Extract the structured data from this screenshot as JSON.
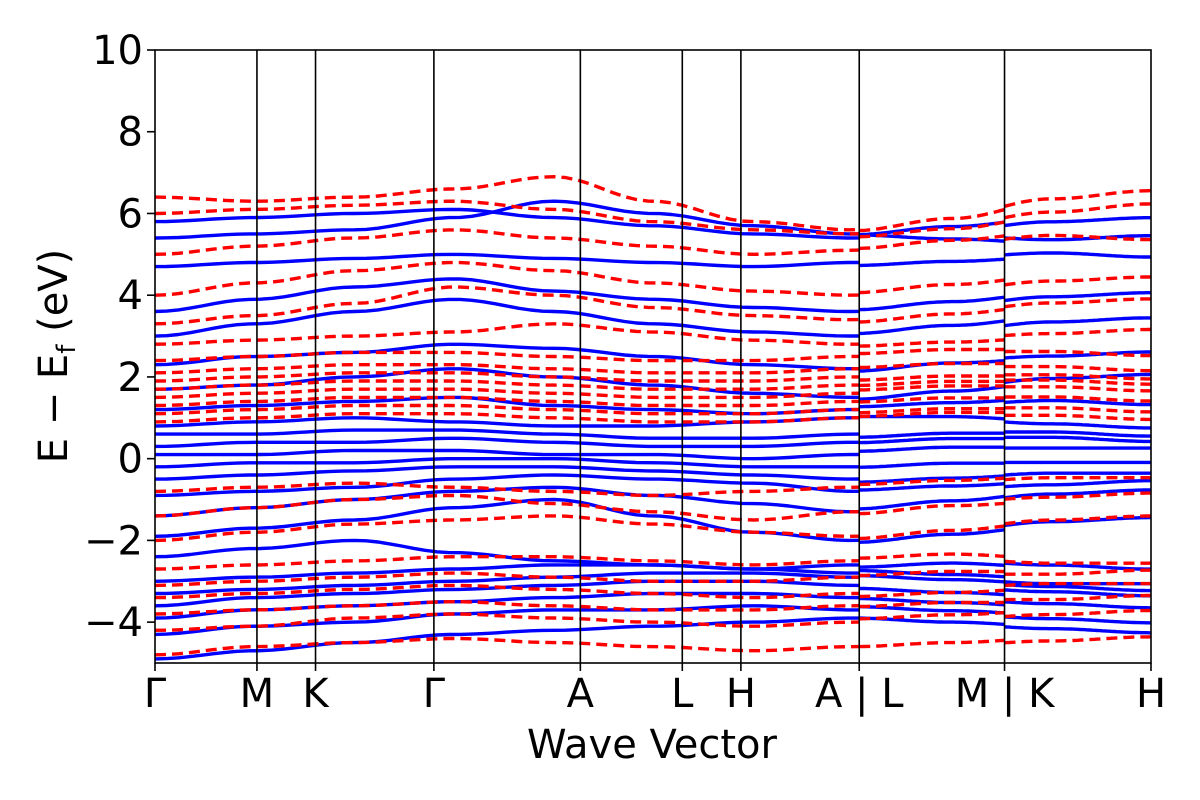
{
  "chart_data": {
    "type": "line",
    "title": "",
    "xlabel": "Wave Vector",
    "ylabel": {
      "prefix": "E − E",
      "subscript": "f",
      "suffix": " (eV)"
    },
    "ylim": [
      -5,
      10
    ],
    "yticks": [
      {
        "value": -4,
        "label": "−4"
      },
      {
        "value": -2,
        "label": "−2"
      },
      {
        "value": 0,
        "label": "0"
      },
      {
        "value": 2,
        "label": "2"
      },
      {
        "value": 4,
        "label": "4"
      },
      {
        "value": 6,
        "label": "6"
      },
      {
        "value": 8,
        "label": "8"
      },
      {
        "value": 10,
        "label": "10"
      }
    ],
    "xlim": [
      0,
      8.5
    ],
    "high_symmetry_points": [
      {
        "position": 0.0,
        "label": "Γ"
      },
      {
        "position": 0.87,
        "label": "M"
      },
      {
        "position": 1.37,
        "label": "K"
      },
      {
        "position": 2.38,
        "label": "Γ"
      },
      {
        "position": 3.63,
        "label": "A"
      },
      {
        "position": 4.5,
        "label": "L"
      },
      {
        "position": 5.0,
        "label": "H"
      },
      {
        "position": 6.01,
        "label": "A | L"
      },
      {
        "position": 7.25,
        "label": "M | K"
      },
      {
        "position": 8.5,
        "label": "H"
      }
    ],
    "segments": [
      {
        "path": "Γ-M-K-Γ-A-L-H-A",
        "x_range": [
          0.0,
          6.01
        ]
      },
      {
        "path": "L-M",
        "x_range": [
          6.01,
          7.25
        ]
      },
      {
        "path": "K-H",
        "x_range": [
          7.25,
          8.5
        ]
      }
    ],
    "series": [
      {
        "spin": "up",
        "color": "#0000ff",
        "style": "solid",
        "bands": [
          [
            -4.9,
            -4.7,
            -4.5,
            -4.3,
            -4.2,
            -4.1,
            -4.0,
            -3.9,
            -4.0,
            -4.1,
            -4.2
          ],
          [
            -4.3,
            -4.1,
            -4.0,
            -3.8,
            -3.7,
            -3.7,
            -3.6,
            -3.7,
            -3.8,
            -3.9,
            -4.0
          ],
          [
            -3.9,
            -3.7,
            -3.6,
            -3.5,
            -3.4,
            -3.3,
            -3.3,
            -3.4,
            -3.5,
            -3.6,
            -3.7
          ],
          [
            -3.6,
            -3.4,
            -3.3,
            -3.2,
            -3.1,
            -3.0,
            -3.0,
            -3.1,
            -3.2,
            -3.3,
            -3.4
          ],
          [
            -3.3,
            -3.2,
            -3.1,
            -3.0,
            -2.9,
            -2.8,
            -2.8,
            -2.9,
            -3.0,
            -3.1,
            -3.2
          ],
          [
            -3.0,
            -2.9,
            -2.8,
            -2.7,
            -2.6,
            -2.6,
            -2.7,
            -2.8,
            -2.9,
            -3.0,
            -3.0
          ],
          [
            -2.4,
            -2.2,
            -2.0,
            -2.3,
            -2.5,
            -2.6,
            -2.7,
            -2.6,
            -2.5,
            -2.6,
            -2.7
          ],
          [
            -1.9,
            -1.7,
            -1.5,
            -1.2,
            -1.0,
            -1.4,
            -1.8,
            -2.0,
            -1.8,
            -1.6,
            -1.5
          ],
          [
            -1.4,
            -1.2,
            -1.0,
            -0.8,
            -0.7,
            -0.9,
            -1.1,
            -1.3,
            -1.1,
            -0.9,
            -0.8
          ],
          [
            -0.9,
            -0.8,
            -0.7,
            -0.5,
            -0.4,
            -0.5,
            -0.6,
            -0.8,
            -0.7,
            -0.6,
            -0.5
          ],
          [
            -0.5,
            -0.4,
            -0.3,
            -0.2,
            -0.2,
            -0.3,
            -0.4,
            -0.5,
            -0.4,
            -0.3,
            -0.3
          ],
          [
            -0.2,
            -0.1,
            -0.1,
            0.0,
            0.0,
            -0.1,
            -0.2,
            -0.2,
            -0.1,
            -0.1,
            -0.1
          ],
          [
            0.1,
            0.1,
            0.2,
            0.2,
            0.1,
            0.1,
            0.0,
            0.1,
            0.2,
            0.2,
            0.2
          ],
          [
            0.3,
            0.4,
            0.4,
            0.5,
            0.4,
            0.3,
            0.3,
            0.4,
            0.5,
            0.5,
            0.4
          ],
          [
            0.6,
            0.6,
            0.7,
            0.7,
            0.6,
            0.5,
            0.5,
            0.6,
            0.7,
            0.7,
            0.6
          ],
          [
            0.8,
            0.9,
            1.0,
            0.9,
            0.8,
            0.8,
            0.9,
            1.0,
            1.0,
            0.9,
            0.8
          ],
          [
            1.2,
            1.3,
            1.4,
            1.5,
            1.3,
            1.2,
            1.1,
            1.2,
            1.3,
            1.4,
            1.3
          ],
          [
            1.7,
            1.8,
            2.0,
            2.2,
            2.0,
            1.8,
            1.6,
            1.5,
            1.7,
            1.9,
            2.0
          ],
          [
            2.3,
            2.5,
            2.6,
            2.8,
            2.7,
            2.5,
            2.3,
            2.2,
            2.4,
            2.5,
            2.6
          ],
          [
            3.0,
            3.3,
            3.6,
            3.9,
            3.6,
            3.3,
            3.1,
            3.0,
            3.2,
            3.4,
            3.5
          ],
          [
            3.6,
            3.9,
            4.2,
            4.4,
            4.1,
            3.9,
            3.7,
            3.6,
            3.8,
            4.0,
            4.1
          ],
          [
            4.7,
            4.8,
            4.9,
            5.0,
            4.9,
            4.8,
            4.7,
            4.8,
            4.9,
            5.0,
            4.9
          ],
          [
            5.4,
            5.5,
            5.6,
            5.9,
            6.3,
            6.0,
            5.7,
            5.5,
            5.4,
            5.3,
            5.4
          ],
          [
            5.8,
            5.9,
            6.0,
            6.1,
            5.9,
            5.7,
            5.5,
            5.4,
            5.6,
            5.8,
            5.9
          ]
        ]
      },
      {
        "spin": "down",
        "color": "#ff0000",
        "style": "dashed",
        "bands": [
          [
            -4.8,
            -4.6,
            -4.5,
            -4.4,
            -4.5,
            -4.6,
            -4.7,
            -4.6,
            -4.5,
            -4.4,
            -4.3
          ],
          [
            -4.2,
            -4.1,
            -3.9,
            -3.8,
            -3.9,
            -4.0,
            -4.1,
            -4.0,
            -3.9,
            -3.8,
            -3.7
          ],
          [
            -3.8,
            -3.7,
            -3.6,
            -3.5,
            -3.6,
            -3.7,
            -3.7,
            -3.6,
            -3.5,
            -3.5,
            -3.4
          ],
          [
            -3.4,
            -3.3,
            -3.2,
            -3.1,
            -3.2,
            -3.3,
            -3.4,
            -3.3,
            -3.2,
            -3.1,
            -3.1
          ],
          [
            -3.1,
            -3.0,
            -2.9,
            -2.8,
            -2.9,
            -3.0,
            -3.0,
            -2.9,
            -2.8,
            -2.8,
            -2.7
          ],
          [
            -2.7,
            -2.6,
            -2.5,
            -2.4,
            -2.4,
            -2.5,
            -2.6,
            -2.5,
            -2.4,
            -2.5,
            -2.5
          ],
          [
            -2.0,
            -1.8,
            -1.6,
            -1.5,
            -1.4,
            -1.6,
            -1.8,
            -1.9,
            -1.7,
            -1.5,
            -1.4
          ],
          [
            -1.4,
            -1.2,
            -1.0,
            -0.9,
            -1.1,
            -1.3,
            -1.5,
            -1.3,
            -1.1,
            -1.0,
            -0.9
          ],
          [
            -0.8,
            -0.7,
            -0.6,
            -0.7,
            -0.8,
            -0.9,
            -0.8,
            -0.7,
            -0.6,
            -0.5,
            -0.5
          ],
          [
            0.9,
            1.0,
            1.1,
            1.1,
            1.0,
            0.9,
            0.9,
            1.0,
            1.1,
            1.1,
            1.0
          ],
          [
            1.1,
            1.2,
            1.3,
            1.3,
            1.2,
            1.1,
            1.1,
            1.2,
            1.3,
            1.3,
            1.2
          ],
          [
            1.3,
            1.4,
            1.5,
            1.5,
            1.4,
            1.3,
            1.3,
            1.4,
            1.5,
            1.5,
            1.4
          ],
          [
            1.5,
            1.6,
            1.7,
            1.7,
            1.6,
            1.5,
            1.5,
            1.6,
            1.7,
            1.7,
            1.6
          ],
          [
            1.7,
            1.8,
            1.9,
            1.9,
            1.8,
            1.7,
            1.7,
            1.8,
            1.9,
            1.9,
            1.8
          ],
          [
            1.9,
            2.0,
            2.1,
            2.1,
            2.0,
            1.9,
            1.9,
            2.0,
            2.1,
            2.1,
            2.0
          ],
          [
            2.1,
            2.2,
            2.3,
            2.3,
            2.2,
            2.1,
            2.1,
            2.2,
            2.3,
            2.3,
            2.2
          ],
          [
            2.4,
            2.5,
            2.6,
            2.6,
            2.5,
            2.4,
            2.4,
            2.5,
            2.6,
            2.6,
            2.5
          ],
          [
            2.8,
            2.9,
            3.0,
            3.1,
            3.3,
            3.1,
            2.9,
            2.8,
            2.9,
            3.0,
            3.1
          ],
          [
            3.3,
            3.5,
            3.8,
            4.2,
            4.0,
            3.7,
            3.5,
            3.4,
            3.6,
            3.8,
            3.9
          ],
          [
            4.0,
            4.3,
            4.6,
            4.8,
            4.6,
            4.3,
            4.1,
            4.0,
            4.2,
            4.4,
            4.5
          ],
          [
            5.0,
            5.2,
            5.4,
            5.6,
            5.4,
            5.2,
            5.0,
            5.1,
            5.3,
            5.5,
            5.4
          ],
          [
            6.0,
            6.1,
            6.2,
            6.3,
            6.1,
            5.8,
            5.6,
            5.5,
            5.7,
            6.0,
            6.2
          ],
          [
            6.4,
            6.3,
            6.4,
            6.6,
            6.9,
            6.3,
            5.8,
            5.6,
            5.9,
            6.3,
            6.5
          ]
        ]
      }
    ]
  }
}
